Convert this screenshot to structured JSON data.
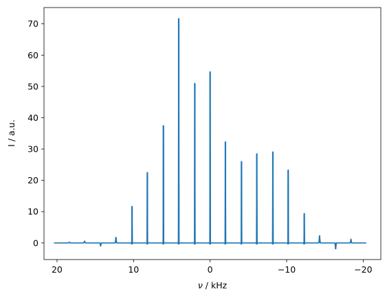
{
  "chart_data": {
    "type": "line",
    "title": "",
    "xlabel_symbol": "ν",
    "xlabel_rest": " / kHz",
    "ylabel": "I / a.u.",
    "xlim": [
      21.7,
      -22.3
    ],
    "ylim": [
      -5.3,
      75.2
    ],
    "x_inverted": true,
    "grid": false,
    "legend": "none",
    "line_color": "#1f77b4",
    "x_range": [
      20.4,
      -20.4
    ],
    "x_ticks": [
      20,
      10,
      0,
      -10,
      -20
    ],
    "x_tick_labels": [
      "20",
      "10",
      "0",
      "−10",
      "−20"
    ],
    "y_ticks": [
      0,
      10,
      20,
      30,
      40,
      50,
      60,
      70
    ],
    "y_tick_labels": [
      "0",
      "10",
      "20",
      "30",
      "40",
      "50",
      "60",
      "70"
    ],
    "series": [
      {
        "peaks": [
          {
            "x": 18.4,
            "y": 0.3
          },
          {
            "x": 16.4,
            "y": 0.6
          },
          {
            "x": 14.3,
            "y": -1.0
          },
          {
            "x": 12.3,
            "y": 1.8
          },
          {
            "x": 10.2,
            "y": 11.7
          },
          {
            "x": 8.2,
            "y": 22.5
          },
          {
            "x": 6.1,
            "y": 37.5
          },
          {
            "x": 4.1,
            "y": 71.7
          },
          {
            "x": 2.0,
            "y": 51.0
          },
          {
            "x": 0.0,
            "y": 54.7
          },
          {
            "x": -2.0,
            "y": 32.3
          },
          {
            "x": -4.1,
            "y": 26.0
          },
          {
            "x": -6.1,
            "y": 28.5
          },
          {
            "x": -8.2,
            "y": 29.1
          },
          {
            "x": -10.2,
            "y": 23.3
          },
          {
            "x": -12.3,
            "y": 9.4
          },
          {
            "x": -14.3,
            "y": 2.3
          },
          {
            "x": -16.4,
            "y": -1.9
          },
          {
            "x": -18.4,
            "y": 1.2
          }
        ]
      }
    ]
  }
}
